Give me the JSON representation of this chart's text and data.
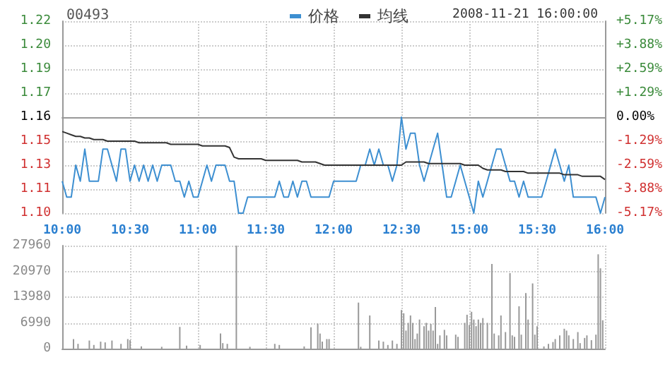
{
  "chart_data": [
    {
      "type": "line",
      "title": "00493",
      "subtitle": "2008-11-21 16:00:00",
      "legend": "top",
      "grid": true,
      "categories": [
        "10:00",
        null,
        null,
        null,
        null,
        null,
        null,
        null,
        null,
        null,
        null,
        null,
        null,
        null,
        null,
        "10:30",
        null,
        null,
        null,
        null,
        null,
        null,
        null,
        null,
        null,
        null,
        null,
        null,
        null,
        null,
        "11:00",
        null,
        null,
        null,
        null,
        null,
        null,
        null,
        null,
        null,
        null,
        null,
        null,
        null,
        null,
        "11:30",
        null,
        null,
        null,
        null,
        null,
        null,
        null,
        null,
        null,
        null,
        null,
        null,
        null,
        null,
        "12:00",
        null,
        null,
        null,
        null,
        null,
        null,
        null,
        null,
        null,
        null,
        null,
        null,
        null,
        null,
        "12:30",
        null,
        null,
        null,
        null,
        null,
        null,
        null,
        null,
        null,
        null,
        null,
        null,
        null,
        null,
        "15:00",
        null,
        null,
        null,
        null,
        null,
        null,
        null,
        null,
        null,
        null,
        null,
        null,
        null,
        null,
        "15:30",
        null,
        null,
        null,
        null,
        null,
        null,
        null,
        null,
        null,
        null,
        null,
        null,
        null,
        null,
        "16:00"
      ],
      "ylim": [
        1.1,
        1.22
      ],
      "yticks": [
        {
          "value": 1.1,
          "label": "1.10"
        },
        {
          "value": 1.115,
          "label": "1.11"
        },
        {
          "value": 1.13,
          "label": "1.13"
        },
        {
          "value": 1.145,
          "label": "1.15"
        },
        {
          "value": 1.16,
          "label": "1.16"
        },
        {
          "value": 1.175,
          "label": "1.17"
        },
        {
          "value": 1.19,
          "label": "1.19"
        },
        {
          "value": 1.205,
          "label": "1.20"
        },
        {
          "value": 1.22,
          "label": "1.22"
        }
      ],
      "y2lim": [
        -5.17,
        5.17
      ],
      "y2ticks": [
        {
          "value": -5.17,
          "label": "-5.17%"
        },
        {
          "value": -3.88,
          "label": "-3.88%"
        },
        {
          "value": -2.59,
          "label": "-2.59%"
        },
        {
          "value": -1.29,
          "label": "-1.29%"
        },
        {
          "value": 0,
          "label": "0.00%"
        },
        {
          "value": 1.29,
          "label": "+1.29%"
        },
        {
          "value": 2.59,
          "label": "+2.59%"
        },
        {
          "value": 3.88,
          "label": "+3.88%"
        },
        {
          "value": 5.17,
          "label": "+5.17%"
        }
      ],
      "series": [
        {
          "name": "价格",
          "color": "#3d8fd1",
          "values": [
            1.12,
            1.11,
            1.11,
            1.13,
            1.12,
            1.14,
            1.12,
            1.12,
            1.12,
            1.14,
            1.14,
            1.13,
            1.12,
            1.14,
            1.14,
            1.12,
            1.13,
            1.12,
            1.13,
            1.12,
            1.13,
            1.12,
            1.13,
            1.13,
            1.13,
            1.12,
            1.12,
            1.11,
            1.12,
            1.11,
            1.11,
            1.12,
            1.13,
            1.12,
            1.13,
            1.13,
            1.13,
            1.12,
            1.12,
            1.1,
            1.1,
            1.11,
            1.11,
            1.11,
            1.11,
            1.11,
            1.11,
            1.11,
            1.12,
            1.11,
            1.11,
            1.12,
            1.11,
            1.12,
            1.12,
            1.11,
            1.11,
            1.11,
            1.11,
            1.11,
            1.12,
            1.12,
            1.12,
            1.12,
            1.12,
            1.12,
            1.13,
            1.13,
            1.14,
            1.13,
            1.14,
            1.13,
            1.13,
            1.12,
            1.13,
            1.16,
            1.14,
            1.15,
            1.15,
            1.13,
            1.12,
            1.13,
            1.14,
            1.15,
            1.13,
            1.11,
            1.11,
            1.12,
            1.13,
            1.12,
            1.11,
            1.1,
            1.12,
            1.11,
            1.12,
            1.13,
            1.14,
            1.14,
            1.13,
            1.12,
            1.12,
            1.11,
            1.12,
            1.11,
            1.11,
            1.11,
            1.11,
            1.12,
            1.13,
            1.14,
            1.13,
            1.12,
            1.13,
            1.11,
            1.11,
            1.11,
            1.11,
            1.11,
            1.11,
            1.1,
            1.11
          ]
        },
        {
          "name": "均线",
          "color": "#333333",
          "values": [
            1.151,
            1.15,
            1.149,
            1.148,
            1.148,
            1.147,
            1.147,
            1.146,
            1.146,
            1.146,
            1.145,
            1.145,
            1.145,
            1.145,
            1.145,
            1.145,
            1.145,
            1.144,
            1.144,
            1.144,
            1.144,
            1.144,
            1.144,
            1.144,
            1.143,
            1.143,
            1.143,
            1.143,
            1.143,
            1.143,
            1.143,
            1.142,
            1.142,
            1.142,
            1.142,
            1.142,
            1.142,
            1.141,
            1.135,
            1.134,
            1.134,
            1.134,
            1.134,
            1.134,
            1.134,
            1.133,
            1.133,
            1.133,
            1.133,
            1.133,
            1.133,
            1.133,
            1.133,
            1.132,
            1.132,
            1.132,
            1.132,
            1.131,
            1.13,
            1.13,
            1.13,
            1.13,
            1.13,
            1.13,
            1.13,
            1.13,
            1.13,
            1.13,
            1.13,
            1.13,
            1.13,
            1.13,
            1.13,
            1.13,
            1.13,
            1.13,
            1.132,
            1.132,
            1.132,
            1.132,
            1.132,
            1.131,
            1.131,
            1.131,
            1.131,
            1.131,
            1.131,
            1.131,
            1.131,
            1.13,
            1.13,
            1.13,
            1.13,
            1.128,
            1.127,
            1.127,
            1.127,
            1.127,
            1.126,
            1.126,
            1.126,
            1.126,
            1.126,
            1.125,
            1.125,
            1.125,
            1.125,
            1.125,
            1.125,
            1.125,
            1.125,
            1.124,
            1.124,
            1.124,
            1.124,
            1.123,
            1.123,
            1.123,
            1.123,
            1.123,
            1.121
          ]
        }
      ]
    },
    {
      "type": "bar",
      "grid": true,
      "tick_labels": "y",
      "color": "#999999",
      "categories": [
        null,
        null,
        null,
        null,
        null,
        null,
        null,
        null,
        null,
        null,
        null,
        null,
        null,
        null,
        null,
        null,
        null,
        null,
        null,
        null,
        null,
        null,
        null,
        null,
        null,
        null,
        null,
        null,
        null,
        null,
        null,
        null,
        null,
        null,
        null,
        null,
        null,
        null,
        null,
        null,
        null,
        null,
        null,
        null,
        null,
        null,
        null,
        null,
        null,
        null,
        null,
        null,
        null,
        null,
        null,
        null,
        null,
        null,
        null,
        null,
        null,
        null,
        null,
        null,
        null,
        null,
        null,
        null,
        null,
        null,
        null,
        null,
        null,
        null,
        null,
        null,
        null,
        null,
        null,
        null,
        null,
        null,
        null,
        null,
        null,
        null,
        null,
        null,
        null,
        null,
        null,
        null,
        null,
        null,
        null,
        null,
        null,
        null,
        null,
        null,
        null,
        null,
        null,
        null,
        null,
        null,
        null,
        null,
        null,
        null,
        null,
        null,
        null,
        null,
        null,
        null,
        null,
        null,
        null,
        null,
        null,
        null,
        null,
        null,
        null,
        null,
        null,
        null,
        null,
        null,
        null,
        null,
        null,
        null,
        null,
        null,
        null,
        null,
        null,
        null,
        null,
        null,
        null,
        null,
        null,
        null,
        null,
        null,
        null,
        null,
        null,
        null,
        null,
        null,
        null,
        null,
        null,
        null,
        null,
        null,
        null,
        null,
        null,
        null,
        null,
        null,
        null,
        null,
        null,
        null,
        null,
        null,
        null,
        null,
        null,
        null,
        null,
        null,
        null,
        null,
        null,
        null,
        null,
        null,
        null,
        null,
        null,
        null,
        null,
        null,
        null,
        null,
        null,
        null,
        null,
        null,
        null,
        null,
        null,
        null,
        null,
        null,
        null,
        null,
        null,
        null,
        null,
        null,
        null,
        null,
        null,
        null,
        null,
        null,
        null,
        null,
        null,
        null,
        null,
        null,
        null,
        null,
        null,
        null,
        null,
        null,
        null,
        null,
        null,
        null,
        null,
        null,
        null,
        null,
        null,
        null,
        null,
        null,
        null,
        null,
        null
      ],
      "ylim": [
        0,
        27960
      ],
      "yticks": [
        0,
        6990,
        13980,
        20970,
        27960
      ],
      "values": [
        null,
        null,
        null,
        null,
        null,
        2600,
        null,
        1300,
        null,
        null,
        null,
        null,
        2200,
        null,
        1000,
        null,
        null,
        1900,
        null,
        1700,
        null,
        null,
        2200,
        null,
        null,
        null,
        1300,
        null,
        null,
        2600,
        2300,
        null,
        null,
        null,
        null,
        600,
        null,
        null,
        null,
        null,
        null,
        null,
        null,
        null,
        500,
        null,
        null,
        null,
        null,
        null,
        null,
        null,
        5900,
        null,
        null,
        800,
        null,
        null,
        null,
        null,
        null,
        1000,
        null,
        null,
        null,
        null,
        null,
        null,
        null,
        null,
        4100,
        1500,
        null,
        1300,
        null,
        null,
        null,
        27960,
        null,
        null,
        null,
        null,
        null,
        500,
        null,
        null,
        null,
        null,
        null,
        null,
        null,
        null,
        null,
        null,
        1300,
        null,
        1000,
        null,
        null,
        null,
        null,
        null,
        null,
        null,
        null,
        null,
        null,
        600,
        null,
        null,
        5800,
        null,
        null,
        6800,
        4100,
        1900,
        null,
        2600,
        2600,
        null,
        null,
        null,
        null,
        null,
        null,
        null,
        null,
        null,
        null,
        null,
        null,
        12500,
        500,
        null,
        null,
        null,
        9000,
        null,
        null,
        null,
        2200,
        null,
        1900,
        null,
        1000,
        null,
        2200,
        null,
        1300,
        null,
        10500,
        9600,
        4900,
        7000,
        9000,
        7000,
        2600,
        4100,
        7900,
        null,
        6100,
        7000,
        4900,
        6700,
        4900,
        11300,
        1300,
        3600,
        null,
        5100,
        3600,
        null,
        null,
        null,
        3800,
        3200,
        null,
        null,
        7000,
        9200,
        6400,
        10000,
        7900,
        6100,
        7900,
        7000,
        8300,
        null,
        7000,
        null,
        23000,
        4100,
        null,
        3600,
        9000,
        null,
        4500,
        null,
        20500,
        3600,
        3200,
        null,
        11500,
        3800,
        null,
        15100,
        7900,
        null,
        17700,
        3800,
        6100,
        null,
        null,
        600,
        null,
        1300,
        null,
        1800,
        2600,
        null,
        3600,
        null,
        5400,
        4900,
        3600,
        null,
        2600,
        null,
        4500,
        1500,
        null,
        2900,
        3600,
        null,
        2300,
        null,
        3800,
        25600,
        21800,
        7700,
        null
      ]
    }
  ]
}
